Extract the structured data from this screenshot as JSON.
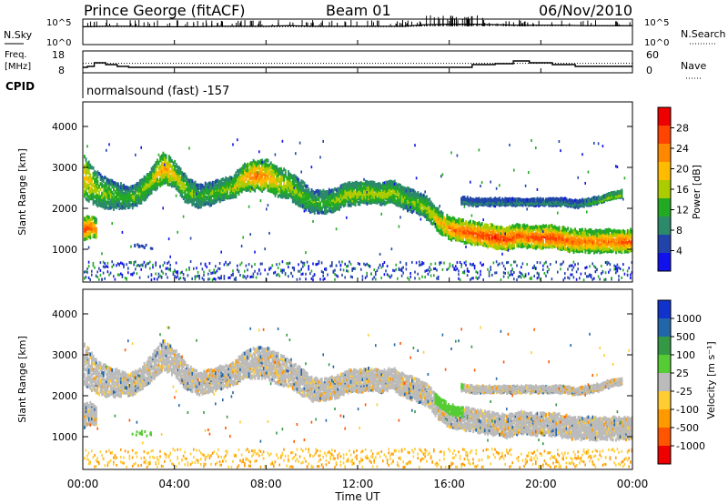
{
  "header": {
    "station": "Prince George (fitACF)",
    "beam": "Beam 01",
    "date": "06/Nov/2010"
  },
  "panels": {
    "nsky": {
      "left_label": "N.Sky",
      "right_label": "N.Search",
      "ticks_left": [
        "10^5",
        "10^0"
      ],
      "ticks_right": [
        "10^5",
        "10^0"
      ]
    },
    "freq": {
      "left_label_1": "Freq.",
      "left_label_2": "[MHz]",
      "right_label": "Nave",
      "ticks_left": [
        "18",
        "8"
      ],
      "ticks_right": [
        "60",
        "0"
      ]
    },
    "cpid": {
      "left_label": "CPID",
      "value_text": "normalsound (fast) -157"
    },
    "power": {
      "ylabel": "Slant Range [km]",
      "yticks": [
        "4000",
        "3000",
        "2000",
        "1000"
      ],
      "colorbar_label": "Power [dB]",
      "colorbar_ticks": [
        "28",
        "24",
        "20",
        "16",
        "12",
        "8",
        "4"
      ],
      "colorbar_colors": [
        "#ee0000",
        "#ff4400",
        "#ff8800",
        "#ffbb00",
        "#aacc00",
        "#22aa22",
        "#2a8a6a",
        "#2244aa",
        "#1111ee"
      ]
    },
    "velocity": {
      "ylabel": "Slant Range [km]",
      "yticks": [
        "4000",
        "3000",
        "2000",
        "1000"
      ],
      "colorbar_label": "Velocity [m s⁻¹]",
      "colorbar_ticks": [
        "1000",
        "500",
        "100",
        "25",
        "-25",
        "-100",
        "-500",
        "-1000"
      ],
      "colorbar_colors": [
        "#1133cc",
        "#2266aa",
        "#339944",
        "#55cc33",
        "#bbbbbb",
        "#ffcc33",
        "#ff9900",
        "#ff5500",
        "#ee0000"
      ]
    }
  },
  "x_axis": {
    "label": "Time UT",
    "ticks": [
      "00:00",
      "04:00",
      "08:00",
      "12:00",
      "16:00",
      "20:00",
      "00:00"
    ]
  },
  "chart_data": [
    {
      "type": "line",
      "title": "N.Sky / N.Search",
      "x": [
        0,
        1,
        2,
        3,
        4,
        5,
        6,
        7,
        8,
        9,
        10,
        11,
        12,
        13,
        14,
        15,
        16,
        17,
        18,
        19,
        20,
        21,
        22,
        24
      ],
      "series": [
        {
          "name": "N.Sky",
          "values": [
            3.5,
            3.6,
            3.6,
            3.5,
            3.5,
            3.5,
            3.6,
            3.6,
            3.6,
            3.7,
            3.6,
            3.6,
            3.6,
            3.6,
            3.6,
            3.9,
            4.0,
            4.0,
            3.9,
            3.8,
            3.8,
            3.8,
            3.7,
            3.7
          ]
        },
        {
          "name": "N.Search",
          "values": [
            3.5,
            3.5,
            3.5,
            3.5,
            3.5,
            3.5,
            3.5,
            3.5,
            3.5,
            3.5,
            3.5,
            3.5,
            3.5,
            3.5,
            3.5,
            3.7,
            3.8,
            3.8,
            3.8,
            3.7,
            3.7,
            3.7,
            3.7,
            3.7
          ]
        }
      ],
      "ylim": [
        0,
        5
      ]
    },
    {
      "type": "line",
      "title": "Freq. / Nave",
      "x": [
        0,
        0.2,
        0.5,
        1,
        1.5,
        2,
        3,
        4,
        5,
        6,
        7,
        8,
        9,
        10,
        11,
        12,
        13,
        14,
        15,
        16,
        17,
        18,
        18.8,
        19.5,
        20.5,
        21.5,
        22.5,
        24
      ],
      "series": [
        {
          "name": "Freq.",
          "values": [
            10.5,
            11,
            13,
            12,
            11,
            10.5,
            10.5,
            10.5,
            10.5,
            10.5,
            10.5,
            10.5,
            10.5,
            10.5,
            10.5,
            10.5,
            10.5,
            10.5,
            10.5,
            10.5,
            12,
            12.5,
            14,
            13,
            12,
            11,
            11,
            11
          ]
        },
        {
          "name": "Nave",
          "values": [
            28,
            28,
            28,
            28,
            28,
            28,
            28,
            28,
            28,
            28,
            28,
            28,
            28,
            28,
            28,
            28,
            28,
            28,
            28,
            28,
            28,
            28,
            28,
            28,
            28,
            28,
            28,
            28
          ]
        }
      ],
      "ylim_freq": [
        8,
        18
      ],
      "ylim_nave": [
        0,
        60
      ]
    },
    {
      "type": "heatmap",
      "title": "Power [dB]",
      "xlabel": "Time UT",
      "ylabel": "Slant Range [km]",
      "xlim": [
        0,
        24
      ],
      "ylim": [
        200,
        4600
      ],
      "colorbar_range": [
        0,
        30
      ],
      "bands": [
        {
          "name": "main scatter band",
          "x": [
            0.0,
            0.5,
            1.0,
            1.5,
            2.0,
            2.5,
            3.0,
            3.5,
            4.0,
            4.5,
            5.0,
            5.5,
            6.0,
            6.5,
            7.0,
            7.5,
            8.0,
            8.5,
            9.0,
            9.5,
            10.0,
            10.5,
            11.0,
            11.5,
            12.0,
            12.5,
            13.0,
            13.5,
            14.0,
            14.5,
            15.0,
            15.5,
            16.0,
            16.5,
            17.0,
            17.5,
            18.0,
            18.5,
            19.0,
            19.5,
            20.0,
            20.5,
            21.0,
            21.5,
            22.0,
            22.5,
            23.0,
            23.5,
            24.0
          ],
          "center_km": [
            2800,
            2500,
            2350,
            2300,
            2250,
            2400,
            2700,
            3000,
            2800,
            2450,
            2300,
            2350,
            2450,
            2500,
            2750,
            2800,
            2800,
            2650,
            2550,
            2350,
            2150,
            2150,
            2200,
            2350,
            2350,
            2400,
            2350,
            2400,
            2250,
            2150,
            2000,
            1700,
            1500,
            1450,
            1400,
            1350,
            1300,
            1250,
            1350,
            1300,
            1300,
            1300,
            1250,
            1200,
            1200,
            1200,
            1200,
            1200,
            1200
          ],
          "half_width_km": [
            500,
            400,
            350,
            300,
            250,
            250,
            300,
            350,
            300,
            300,
            250,
            250,
            250,
            250,
            300,
            350,
            350,
            350,
            300,
            300,
            250,
            250,
            250,
            250,
            250,
            250,
            250,
            250,
            250,
            250,
            250,
            250,
            250,
            250,
            250,
            250,
            250,
            250,
            250,
            250,
            250,
            250,
            250,
            250,
            250,
            250,
            250,
            250,
            250
          ],
          "peak_dB": [
            20,
            16,
            14,
            12,
            12,
            14,
            16,
            22,
            18,
            14,
            12,
            12,
            14,
            16,
            20,
            24,
            22,
            18,
            16,
            14,
            12,
            12,
            14,
            16,
            16,
            16,
            16,
            16,
            14,
            14,
            16,
            20,
            24,
            26,
            28,
            28,
            30,
            28,
            26,
            26,
            28,
            28,
            26,
            26,
            24,
            24,
            24,
            26,
            26
          ]
        },
        {
          "name": "early low echoes",
          "x": [
            0.0,
            0.3,
            0.6
          ],
          "center_km": [
            1500,
            1550,
            1500
          ],
          "half_width_km": [
            250,
            250,
            200
          ],
          "peak_dB": [
            28,
            26,
            22
          ]
        },
        {
          "name": "upper band late",
          "x": [
            16.5,
            17.0,
            17.5,
            18.0,
            18.5,
            19.0,
            19.5,
            20.0,
            20.5,
            21.0,
            21.5,
            22.0,
            22.5,
            23.0,
            23.5
          ],
          "center_km": [
            2200,
            2150,
            2150,
            2150,
            2150,
            2150,
            2150,
            2150,
            2150,
            2150,
            2100,
            2150,
            2200,
            2300,
            2350
          ],
          "half_width_km": [
            60,
            60,
            60,
            60,
            60,
            60,
            60,
            60,
            60,
            60,
            60,
            60,
            60,
            60,
            60
          ],
          "peak_dB": [
            8,
            8,
            8,
            8,
            8,
            8,
            8,
            8,
            8,
            8,
            8,
            10,
            14,
            16,
            16
          ]
        }
      ]
    },
    {
      "type": "heatmap",
      "title": "Velocity [m s⁻¹]",
      "xlabel": "Time UT",
      "ylabel": "Slant Range [km]",
      "xlim": [
        0,
        24
      ],
      "ylim": [
        200,
        4600
      ],
      "colorbar_range": [
        -1000,
        1000
      ],
      "note_values": [
        25,
        -25
      ]
    }
  ]
}
